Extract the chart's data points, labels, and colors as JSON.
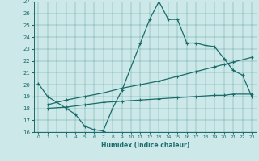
{
  "xlabel": "Humidex (Indice chaleur)",
  "xlim": [
    -0.5,
    23.5
  ],
  "ylim": [
    16,
    27
  ],
  "xticks": [
    0,
    1,
    2,
    3,
    4,
    5,
    6,
    7,
    8,
    9,
    10,
    11,
    12,
    13,
    14,
    15,
    16,
    17,
    18,
    19,
    20,
    21,
    22,
    23
  ],
  "yticks": [
    16,
    17,
    18,
    19,
    20,
    21,
    22,
    23,
    24,
    25,
    26,
    27
  ],
  "bg_color": "#cce8e8",
  "line_color": "#1a6b6b",
  "line1_x": [
    0,
    1,
    3,
    4,
    5,
    6,
    7,
    8,
    9,
    11,
    12,
    13,
    14,
    15,
    16,
    17,
    18,
    19,
    20,
    21,
    22,
    23
  ],
  "line1_y": [
    20.1,
    19.0,
    18.0,
    17.5,
    16.5,
    16.2,
    16.1,
    18.0,
    19.5,
    23.5,
    25.5,
    27.0,
    25.5,
    25.5,
    23.5,
    23.5,
    23.3,
    23.2,
    22.2,
    21.2,
    20.8,
    19.0
  ],
  "line2_x": [
    1,
    3,
    5,
    7,
    9,
    11,
    13,
    15,
    17,
    19,
    20,
    21,
    23
  ],
  "line2_y": [
    18.3,
    18.7,
    19.0,
    19.3,
    19.7,
    20.0,
    20.3,
    20.7,
    21.1,
    21.5,
    21.7,
    21.9,
    22.3
  ],
  "line3_x": [
    1,
    3,
    5,
    7,
    9,
    11,
    13,
    15,
    17,
    19,
    20,
    21,
    23
  ],
  "line3_y": [
    18.0,
    18.1,
    18.3,
    18.5,
    18.6,
    18.7,
    18.8,
    18.9,
    19.0,
    19.1,
    19.1,
    19.2,
    19.2
  ]
}
